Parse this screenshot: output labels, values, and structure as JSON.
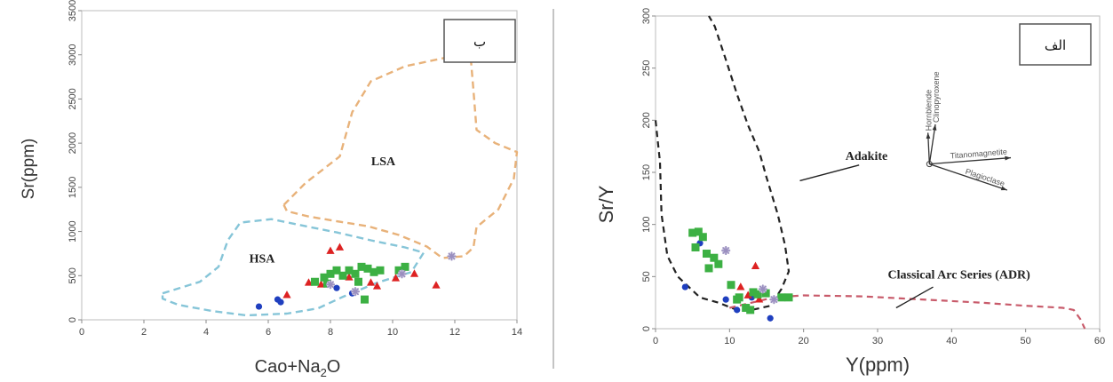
{
  "chart_data": [
    {
      "type": "scatter",
      "panel_label": "ب",
      "xlabel": "Cao+Na",
      "xlabel_sub": "2",
      "xlabel_suffix": "O",
      "ylabel": "Sr(ppm)",
      "xlim": [
        0,
        14
      ],
      "ylim": [
        0,
        3500
      ],
      "xticks": [
        "0",
        "2",
        "4",
        "6",
        "8",
        "10",
        "12",
        "14"
      ],
      "yticks": [
        "0",
        "500",
        "1000",
        "1500",
        "2000",
        "2500",
        "3000",
        "3500"
      ],
      "regions": [
        {
          "label": "LSA",
          "label_pos": [
            9.7,
            1750
          ],
          "color": "#e8b27a",
          "points": [
            [
              6.5,
              1300
            ],
            [
              7.2,
              1550
            ],
            [
              8.3,
              1850
            ],
            [
              8.7,
              2350
            ],
            [
              9.3,
              2700
            ],
            [
              10.4,
              2870
            ],
            [
              11.6,
              2960
            ],
            [
              12.5,
              3020
            ],
            [
              12.6,
              2600
            ],
            [
              12.7,
              2150
            ],
            [
              13.3,
              2000
            ],
            [
              14.0,
              1900
            ],
            [
              13.9,
              1600
            ],
            [
              13.4,
              1250
            ],
            [
              12.7,
              1050
            ],
            [
              12.6,
              820
            ],
            [
              12.3,
              720
            ],
            [
              11.6,
              700
            ],
            [
              11.1,
              830
            ],
            [
              10.2,
              960
            ],
            [
              9.2,
              1060
            ],
            [
              8.3,
              1110
            ],
            [
              7.3,
              1170
            ],
            [
              6.6,
              1230
            ],
            [
              6.5,
              1300
            ]
          ]
        },
        {
          "label": "HSA",
          "label_pos": [
            5.8,
            650
          ],
          "color": "#86c5d8",
          "points": [
            [
              2.6,
              300
            ],
            [
              3.8,
              430
            ],
            [
              4.4,
              600
            ],
            [
              4.7,
              900
            ],
            [
              5.1,
              1100
            ],
            [
              6.1,
              1140
            ],
            [
              7.2,
              1060
            ],
            [
              8.2,
              990
            ],
            [
              9.3,
              900
            ],
            [
              10.4,
              820
            ],
            [
              11.0,
              760
            ],
            [
              10.6,
              540
            ],
            [
              9.5,
              420
            ],
            [
              8.4,
              260
            ],
            [
              7.6,
              130
            ],
            [
              6.6,
              70
            ],
            [
              5.3,
              50
            ],
            [
              4.2,
              100
            ],
            [
              3.1,
              170
            ],
            [
              2.6,
              240
            ],
            [
              2.6,
              300
            ]
          ]
        }
      ],
      "series": [
        {
          "marker": "circle",
          "color": "#1f3fbf",
          "points": [
            [
              5.7,
              150
            ],
            [
              6.3,
              230
            ],
            [
              6.4,
              200
            ],
            [
              8.7,
              300
            ],
            [
              8.2,
              360
            ]
          ]
        },
        {
          "marker": "triangle",
          "color": "#dd2222",
          "points": [
            [
              6.6,
              280
            ],
            [
              7.3,
              420
            ],
            [
              7.7,
              400
            ],
            [
              8.0,
              780
            ],
            [
              8.3,
              820
            ],
            [
              9.3,
              420
            ],
            [
              9.5,
              380
            ],
            [
              10.1,
              470
            ],
            [
              10.7,
              520
            ],
            [
              11.4,
              390
            ],
            [
              8.6,
              480
            ]
          ]
        },
        {
          "marker": "square",
          "color": "#3cb043",
          "points": [
            [
              7.5,
              430
            ],
            [
              7.8,
              480
            ],
            [
              8.0,
              520
            ],
            [
              8.2,
              560
            ],
            [
              8.4,
              500
            ],
            [
              8.6,
              560
            ],
            [
              8.8,
              520
            ],
            [
              9.0,
              600
            ],
            [
              9.2,
              580
            ],
            [
              9.4,
              540
            ],
            [
              9.6,
              560
            ],
            [
              10.2,
              560
            ],
            [
              10.4,
              600
            ],
            [
              8.9,
              430
            ],
            [
              9.1,
              230
            ],
            [
              7.9,
              410
            ]
          ]
        },
        {
          "marker": "asterisk",
          "color": "#9a8fbf",
          "points": [
            [
              11.9,
              720
            ],
            [
              8.0,
              400
            ],
            [
              10.3,
              520
            ],
            [
              8.8,
              320
            ]
          ]
        }
      ]
    },
    {
      "type": "scatter",
      "panel_label": "الف",
      "xlabel": "Y(ppm)",
      "ylabel": "Sr/Y",
      "xlim": [
        0,
        60
      ],
      "ylim": [
        0,
        300
      ],
      "xticks": [
        "0",
        "10",
        "20",
        "30",
        "40",
        "50",
        "60"
      ],
      "yticks": [
        "0",
        "50",
        "100",
        "150",
        "200",
        "250",
        "300"
      ],
      "regions": [
        {
          "label": "Adakite",
          "label_pos": [
            28.5,
            162
          ],
          "color": "#222222",
          "points": [
            [
              0.0,
              200
            ],
            [
              0.6,
              160
            ],
            [
              0.8,
              110
            ],
            [
              1.6,
              70
            ],
            [
              3.0,
              50
            ],
            [
              6.0,
              30
            ],
            [
              8.5,
              25
            ],
            [
              11.0,
              18
            ],
            [
              13.0,
              18
            ],
            [
              15.5,
              22
            ],
            [
              17.0,
              38
            ],
            [
              18.0,
              55
            ],
            [
              17.5,
              80
            ],
            [
              16.5,
              110
            ],
            [
              15.0,
              145
            ],
            [
              14.0,
              170
            ],
            [
              12.5,
              195
            ],
            [
              11.0,
              225
            ],
            [
              9.5,
              258
            ],
            [
              8.0,
              290
            ],
            [
              7.2,
              300
            ]
          ]
        },
        {
          "label": "Classical Arc Series (ADR)",
          "label_pos": [
            41,
            48
          ],
          "color": "#c85a6a",
          "points": [
            [
              10.0,
              20
            ],
            [
              13.0,
              25
            ],
            [
              16.0,
              30
            ],
            [
              20.0,
              32
            ],
            [
              28.0,
              31
            ],
            [
              36.0,
              28
            ],
            [
              44.0,
              25
            ],
            [
              50.0,
              22
            ],
            [
              55.0,
              20
            ],
            [
              56.5,
              18
            ],
            [
              57.4,
              9
            ],
            [
              58.0,
              0
            ]
          ]
        }
      ],
      "series": [
        {
          "marker": "circle",
          "color": "#1f3fbf",
          "points": [
            [
              4.0,
              40
            ],
            [
              6.0,
              82
            ],
            [
              9.5,
              28
            ],
            [
              11.0,
              18
            ],
            [
              13.0,
              30
            ],
            [
              15.5,
              10
            ]
          ]
        },
        {
          "marker": "triangle",
          "color": "#dd2222",
          "points": [
            [
              13.5,
              60
            ],
            [
              11.5,
              40
            ],
            [
              12.5,
              32
            ],
            [
              14.0,
              28
            ]
          ]
        },
        {
          "marker": "square",
          "color": "#3cb043",
          "points": [
            [
              5.0,
              92
            ],
            [
              5.8,
              93
            ],
            [
              6.4,
              88
            ],
            [
              5.4,
              78
            ],
            [
              6.9,
              72
            ],
            [
              7.9,
              68
            ],
            [
              8.5,
              62
            ],
            [
              7.2,
              58
            ],
            [
              10.2,
              42
            ],
            [
              11.3,
              30
            ],
            [
              12.2,
              20
            ],
            [
              13.8,
              33
            ],
            [
              14.9,
              34
            ],
            [
              17.0,
              30
            ],
            [
              18.0,
              30
            ],
            [
              12.8,
              18
            ],
            [
              11.0,
              28
            ],
            [
              13.2,
              35
            ]
          ]
        },
        {
          "marker": "asterisk",
          "color": "#9a8fbf",
          "points": [
            [
              9.5,
              75
            ],
            [
              14.5,
              38
            ],
            [
              16.0,
              28
            ]
          ]
        }
      ],
      "minerals": {
        "origin": [
          37,
          158
        ],
        "vectors": [
          {
            "name": "Hornblende",
            "end": [
              36.8,
              188
            ]
          },
          {
            "name": "Clinopyroxene",
            "end": [
              37.8,
              196
            ]
          },
          {
            "name": "Titanomagnetite",
            "end": [
              48.0,
              164
            ]
          },
          {
            "name": "Plagioclase",
            "end": [
              47.5,
              133
            ]
          }
        ]
      }
    }
  ]
}
